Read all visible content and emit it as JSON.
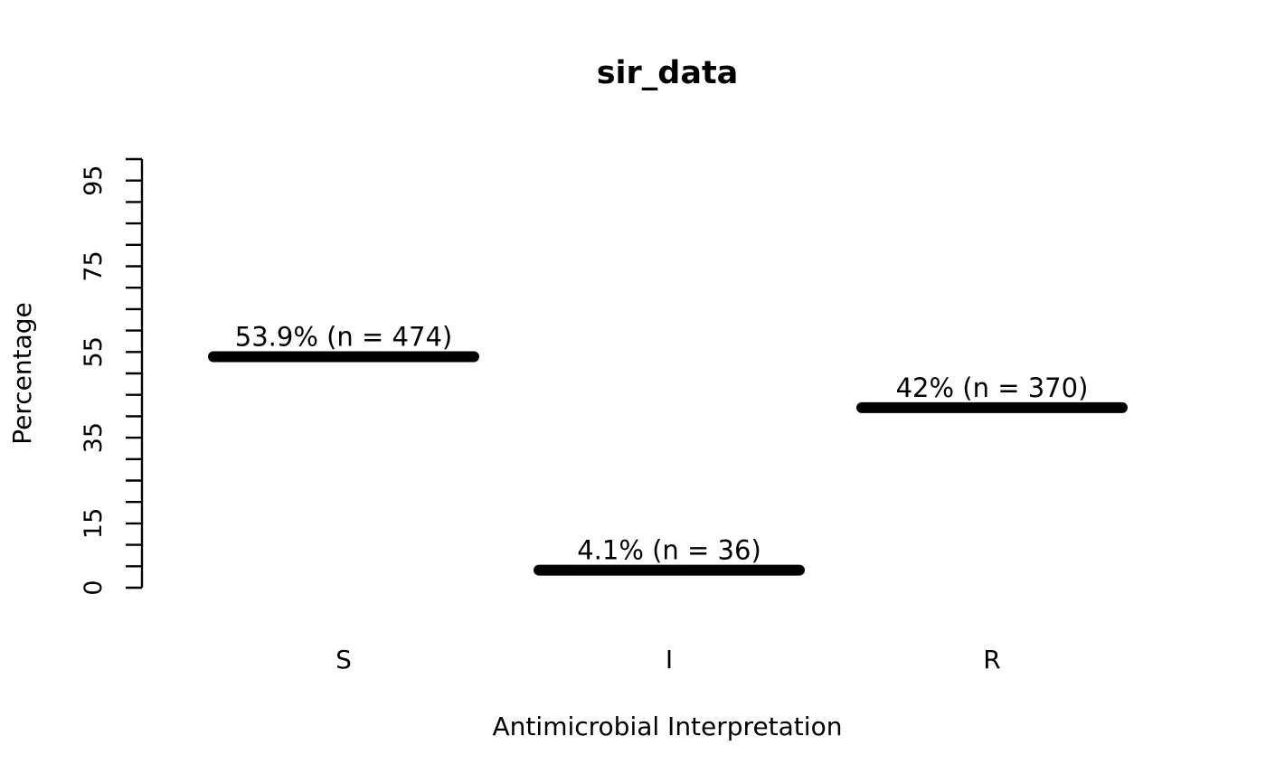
{
  "title": "sir_data",
  "chart_data": {
    "type": "bar",
    "style": "horizontal-dash-marks",
    "title": "sir_data",
    "xlabel": "Antimicrobial Interpretation",
    "ylabel": "Percentage",
    "categories": [
      "S",
      "I",
      "R"
    ],
    "values": [
      53.9,
      4.1,
      42
    ],
    "counts": [
      474,
      36,
      370
    ],
    "bar_labels": [
      "53.9% (n = 474)",
      "4.1% (n = 36)",
      "42% (n = 370)"
    ],
    "ylim": [
      0,
      100
    ],
    "ytick_interval": 5,
    "ytick_labels": [
      "0",
      "15",
      "35",
      "55",
      "75",
      "95"
    ],
    "ytick_label_values": [
      0,
      15,
      35,
      55,
      75,
      95
    ],
    "grid": false,
    "legend": null,
    "bar_color": "#000000",
    "axis_color": "#000000",
    "background_color": "#ffffff"
  }
}
